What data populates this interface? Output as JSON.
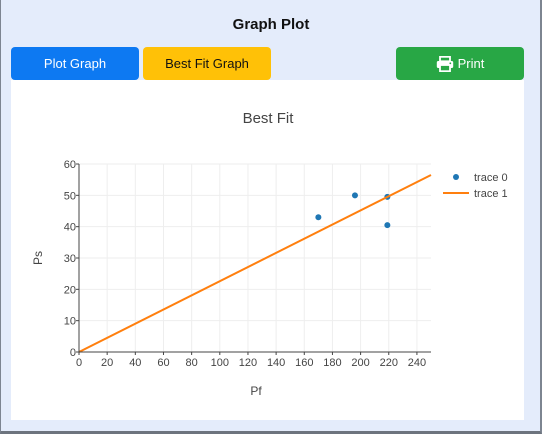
{
  "header": {
    "title": "Graph Plot"
  },
  "toolbar": {
    "plot_label": "Plot Graph",
    "best_fit_label": "Best Fit Graph",
    "print_label": "Print"
  },
  "colors": {
    "plot_button": "#0d79f2",
    "best_fit_button": "#ffc107",
    "print_button": "#28a745",
    "scatter": "#1f77b4",
    "fit_line": "#ff7f0e"
  },
  "chart_data": {
    "type": "scatter",
    "title": "Best Fit",
    "xlabel": "Pf",
    "ylabel": "Ps",
    "xlim": [
      0,
      250
    ],
    "ylim": [
      0,
      60
    ],
    "x_ticks": [
      0,
      20,
      40,
      60,
      80,
      100,
      120,
      140,
      160,
      180,
      200,
      220,
      240
    ],
    "y_ticks": [
      0,
      10,
      20,
      30,
      40,
      50,
      60
    ],
    "grid": true,
    "legend": "top-right",
    "series": [
      {
        "name": "trace 0",
        "mode": "markers",
        "points": [
          {
            "x": 170,
            "y": 43
          },
          {
            "x": 196,
            "y": 50
          },
          {
            "x": 219,
            "y": 49.5
          },
          {
            "x": 219,
            "y": 40.5
          }
        ]
      },
      {
        "name": "trace 1",
        "mode": "lines",
        "points": [
          {
            "x": 0,
            "y": 0
          },
          {
            "x": 250,
            "y": 56.5
          }
        ]
      }
    ]
  }
}
